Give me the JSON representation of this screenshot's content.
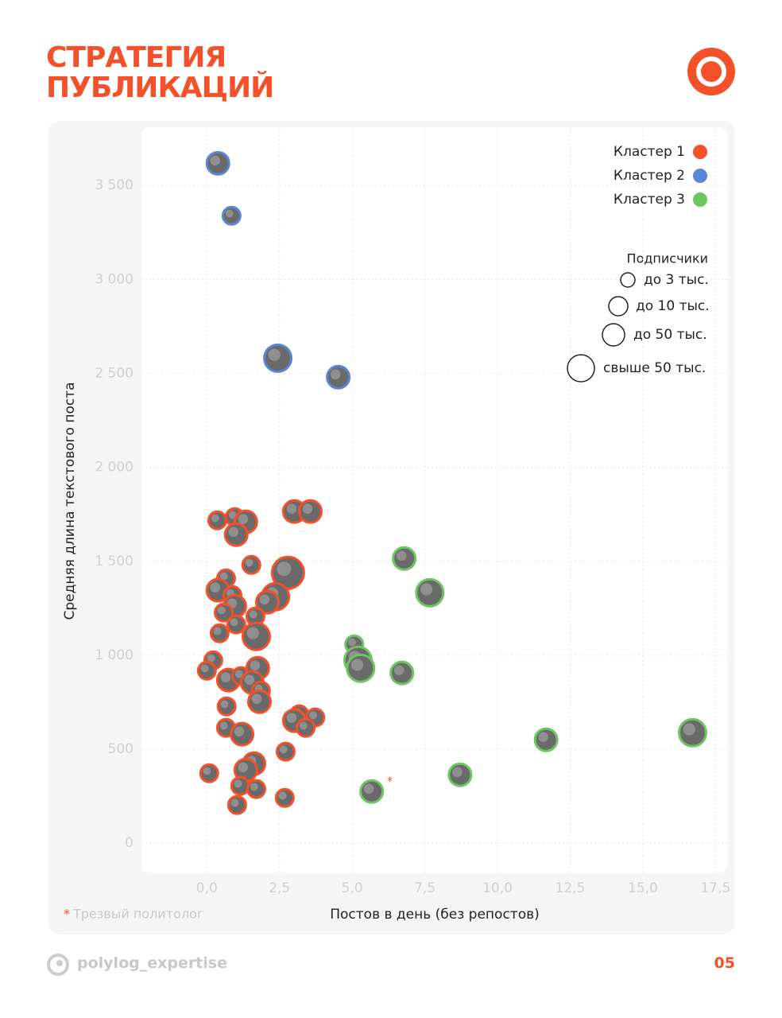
{
  "header": {
    "title": "СТРАТЕГИЯ ПУБЛИКАЦИЙ"
  },
  "chart_data": {
    "type": "scatter",
    "xlabel": "Постов в день (без репостов)",
    "ylabel": "Средняя длина текстового поста",
    "xlim": [
      -2.25,
      17.9
    ],
    "ylim": [
      -160,
      3810
    ],
    "xticks": [
      {
        "value": 0,
        "label": "0,0"
      },
      {
        "value": 2.5,
        "label": "2,5"
      },
      {
        "value": 5,
        "label": "5,0"
      },
      {
        "value": 7.5,
        "label": "7,5"
      },
      {
        "value": 10,
        "label": "10,0"
      },
      {
        "value": 12.5,
        "label": "12,5"
      },
      {
        "value": 15,
        "label": "15,0"
      },
      {
        "value": 17.5,
        "label": "17,5"
      }
    ],
    "yticks": [
      0,
      500,
      {
        "value": 1000,
        "label": "1 000"
      },
      {
        "value": 1500,
        "label": "1 500"
      },
      {
        "value": 2000,
        "label": "2 000"
      },
      {
        "value": 2500,
        "label": "2 500"
      },
      {
        "value": 3000,
        "label": "3 000"
      },
      {
        "value": 3500,
        "label": "3 500"
      }
    ],
    "grid": true,
    "size_title": "Подписчики",
    "size_legend": [
      "до 3 тыс.",
      "до 10 тыс.",
      "до 50 тыс.",
      "свыше 50 тыс."
    ],
    "series": [
      {
        "name": "Кластер 1",
        "color": "#f4502a",
        "x": [
          3.01,
          3.56,
          0.36,
          0.96,
          1.34,
          1.01,
          1.53,
          2.79,
          0.66,
          2.36,
          2.08,
          0.38,
          0.88,
          0.96,
          0.58,
          1.67,
          0.44,
          1.01,
          1.7,
          0.22,
          0.0,
          0.74,
          1.18,
          1.75,
          1.56,
          1.86,
          1.81,
          0.68,
          3.18,
          3.73,
          3.01,
          3.4,
          0.66,
          1.21,
          2.71,
          1.62,
          1.34,
          0.08,
          1.15,
          1.7,
          1.04,
          2.68
        ],
        "y": [
          1765,
          1765,
          1718,
          1735,
          1710,
          1642,
          1481,
          1439,
          1409,
          1312,
          1282,
          1346,
          1320,
          1261,
          1227,
          1206,
          1117,
          1164,
          1100,
          973,
          918,
          868,
          889,
          931,
          855,
          812,
          753,
          728,
          686,
          669,
          652,
          614,
          614,
          580,
          487,
          423,
          389,
          372,
          305,
          288,
          203,
          241
        ],
        "size": [
          "до 10 тыс.",
          "до 10 тыс.",
          "до 3 тыс.",
          "до 3 тыс.",
          "до 10 тыс.",
          "до 10 тыс.",
          "до 3 тыс.",
          "свыше 50 тыс.",
          "до 3 тыс.",
          "до 50 тыс.",
          "до 10 тыс.",
          "до 10 тыс.",
          "до 3 тыс.",
          "до 10 тыс.",
          "до 3 тыс.",
          "до 3 тыс.",
          "до 3 тыс.",
          "до 3 тыс.",
          "до 50 тыс.",
          "до 3 тыс.",
          "до 3 тыс.",
          "до 10 тыс.",
          "до 3 тыс.",
          "до 10 тыс.",
          "до 10 тыс.",
          "до 3 тыс.",
          "до 10 тыс.",
          "до 3 тыс.",
          "до 3 тыс.",
          "до 3 тыс.",
          "до 10 тыс.",
          "до 3 тыс.",
          "до 3 тыс.",
          "до 10 тыс.",
          "до 3 тыс.",
          "до 10 тыс.",
          "до 10 тыс.",
          "до 3 тыс.",
          "до 3 тыс.",
          "до 3 тыс.",
          "до 3 тыс.",
          "до 3 тыс."
        ]
      },
      {
        "name": "Кластер 2",
        "color": "#5b85d6",
        "x": [
          0.38,
          0.85,
          2.44,
          4.52
        ],
        "y": [
          3618,
          3339,
          2581,
          2480
        ],
        "size": [
          "до 10 тыс.",
          "до 3 тыс.",
          "до 50 тыс.",
          "до 10 тыс."
        ]
      },
      {
        "name": "Кластер 3",
        "color": "#6cc562",
        "x": [
          6.79,
          7.67,
          5.07,
          5.2,
          5.29,
          6.71,
          5.67,
          8.71,
          11.67,
          16.71
        ],
        "y": [
          1515,
          1333,
          1058,
          973,
          931,
          906,
          275,
          364,
          550,
          588
        ],
        "size": [
          "до 10 тыс.",
          "до 50 тыс.",
          "до 3 тыс.",
          "до 50 тыс.",
          "до 50 тыс.",
          "до 10 тыс.",
          "до 10 тыс.",
          "до 10 тыс.",
          "до 10 тыс.",
          "до 50 тыс."
        ]
      }
    ],
    "note_marker": "*",
    "note": "Трезвый политолог"
  },
  "footer": {
    "handle": "polylog_expertise",
    "page": "05"
  }
}
